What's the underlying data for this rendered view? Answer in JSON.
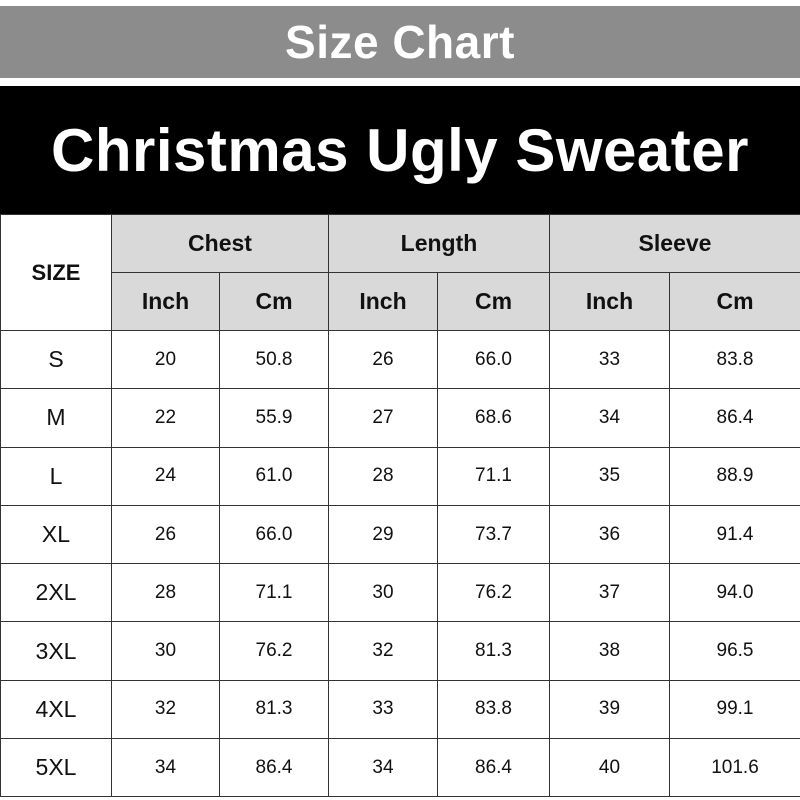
{
  "header": {
    "top_title": "Size Chart",
    "main_title": "Christmas Ugly Sweater"
  },
  "table": {
    "size_label": "SIZE",
    "groups": [
      "Chest",
      "Length",
      "Sleeve"
    ],
    "units": [
      "Inch",
      "Cm",
      "Inch",
      "Cm",
      "Inch",
      "Cm"
    ],
    "rows": [
      {
        "size": "S",
        "values": [
          "20",
          "50.8",
          "26",
          "66.0",
          "33",
          "83.8"
        ]
      },
      {
        "size": "M",
        "values": [
          "22",
          "55.9",
          "27",
          "68.6",
          "34",
          "86.4"
        ]
      },
      {
        "size": "L",
        "values": [
          "24",
          "61.0",
          "28",
          "71.1",
          "35",
          "88.9"
        ]
      },
      {
        "size": "XL",
        "values": [
          "26",
          "66.0",
          "29",
          "73.7",
          "36",
          "91.4"
        ]
      },
      {
        "size": "2XL",
        "values": [
          "28",
          "71.1",
          "30",
          "76.2",
          "37",
          "94.0"
        ]
      },
      {
        "size": "3XL",
        "values": [
          "30",
          "76.2",
          "32",
          "81.3",
          "38",
          "96.5"
        ]
      },
      {
        "size": "4XL",
        "values": [
          "32",
          "81.3",
          "33",
          "83.8",
          "39",
          "99.1"
        ]
      },
      {
        "size": "5XL",
        "values": [
          "34",
          "86.4",
          "34",
          "86.4",
          "40",
          "101.6"
        ]
      }
    ]
  },
  "colors": {
    "top_banner_bg": "#8c8c8c",
    "main_banner_bg": "#000000",
    "header_cell_bg": "#d9d9d9"
  }
}
